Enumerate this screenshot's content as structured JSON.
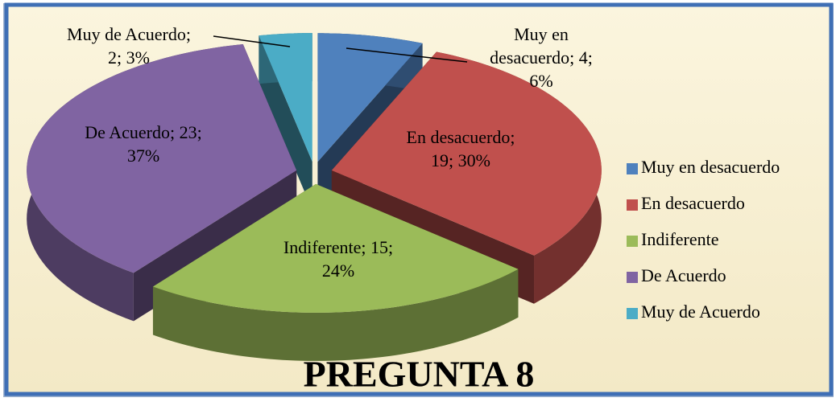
{
  "chart_data": {
    "type": "pie",
    "title": "PREGUNTA 8",
    "categories": [
      "Muy en desacuerdo",
      "En desacuerdo",
      "Indiferente",
      "De Acuerdo",
      "Muy de Acuerdo"
    ],
    "values": [
      4,
      19,
      15,
      23,
      2
    ],
    "value_labels": [
      [
        "Muy en",
        "desacuerdo; 4;",
        "6%"
      ],
      [
        "En desacuerdo;",
        "19; 30%"
      ],
      [
        "Indiferente; 15;",
        "24%"
      ],
      [
        "De Acuerdo; 23;",
        "37%"
      ],
      [
        "Muy de Acuerdo;",
        "2; 3%"
      ]
    ],
    "colors": [
      "#4f81bd",
      "#c0504d",
      "#9bbb59",
      "#8064a2",
      "#4bacc6"
    ],
    "legend": "right"
  }
}
